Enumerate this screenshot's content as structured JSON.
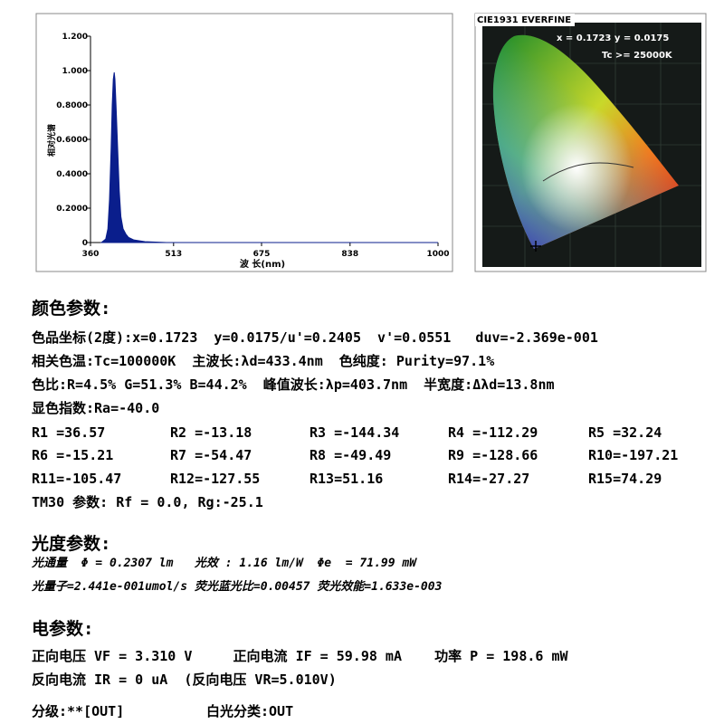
{
  "spectrum": {
    "y_label": "相对光谱",
    "x_label": "波 长(nm)",
    "xlim": [
      360,
      1000
    ],
    "ylim": [
      0,
      1.2
    ],
    "xticks": [
      360,
      513,
      675,
      838,
      1000
    ],
    "yticks": [
      0,
      {
        "value": 0.2,
        "label": "0.2000"
      },
      {
        "value": 0.4,
        "label": "0.4000"
      },
      {
        "value": 0.6,
        "label": "0.6000"
      },
      {
        "value": 0.8,
        "label": "0.8000"
      },
      {
        "value": 1.0,
        "label": "1.000"
      },
      {
        "value": 1.2,
        "label": "1.200"
      }
    ],
    "x": [
      380,
      388,
      392,
      395,
      398,
      400,
      402,
      403.7,
      405,
      407,
      410,
      413,
      416,
      420,
      425,
      430,
      440,
      460,
      500,
      600,
      800,
      1000
    ],
    "values": [
      0,
      0.02,
      0.08,
      0.25,
      0.55,
      0.8,
      0.95,
      0.99,
      0.95,
      0.8,
      0.55,
      0.3,
      0.15,
      0.08,
      0.05,
      0.03,
      0.015,
      0.005,
      0,
      0,
      0,
      0
    ],
    "color": "#0a1e8c"
  },
  "cie": {
    "title": "CIE1931 EVERFINE",
    "coords": "x = 0.1723 y = 0.0175",
    "tc": "Tc >= 25000K"
  },
  "color_params": {
    "heading": "颜色参数:",
    "lines": [
      "色品坐标(2度):x=0.1723  y=0.0175/u'=0.2405  v'=0.0551   duv=-2.369e-001",
      "相关色温:Tc=100000K  主波长:λd=433.4nm  色纯度: Purity=97.1%",
      "色比:R=4.5% G=51.3% B=44.2%  峰值波长:λp=403.7nm  半宽度:Δλd=13.8nm",
      "显色指数:Ra=-40.0"
    ],
    "r_values": [
      [
        "R1 =36.57",
        "R2 =-13.18",
        "R3 =-144.34",
        "R4 =-112.29",
        "R5 =32.24"
      ],
      [
        "R6 =-15.21",
        "R7 =-54.47",
        "R8 =-49.49",
        "R9 =-128.66",
        "R10=-197.21"
      ],
      [
        "R11=-105.47",
        "R12=-127.55",
        "R13=51.16",
        "R14=-27.27",
        "R15=74.29"
      ]
    ],
    "tm30": "TM30 参数: Rf = 0.0, Rg:-25.1"
  },
  "photometric": {
    "heading": "光度参数:",
    "lines": [
      "光通量  Φ = 0.2307 lm   光效 : 1.16 lm/W  Φe  = 71.99 mW",
      "光量子=2.441e-001umol/s 荧光蓝光比=0.00457 荧光效能=1.633e-003"
    ]
  },
  "electrical": {
    "heading": "电参数:",
    "lines": [
      "正向电压 VF = 3.310 V     正向电流 IF = 59.98 mA    功率 P = 198.6 mW",
      "反向电流 IR = 0 uA  (反向电压 VR=5.010V)"
    ]
  },
  "grading": {
    "grade": "分级:**[OUT]",
    "white_class": "白光分类:OUT"
  }
}
